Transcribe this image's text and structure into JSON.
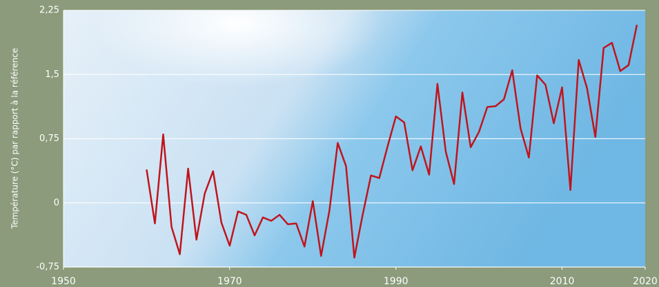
{
  "chart_data": {
    "type": "line",
    "y_label": "Température (°C) par rapport à la référence",
    "x": [
      1960,
      1961,
      1962,
      1963,
      1964,
      1965,
      1966,
      1967,
      1968,
      1969,
      1970,
      1971,
      1972,
      1973,
      1974,
      1975,
      1976,
      1977,
      1978,
      1979,
      1980,
      1981,
      1982,
      1983,
      1984,
      1985,
      1986,
      1987,
      1988,
      1989,
      1990,
      1991,
      1992,
      1993,
      1994,
      1995,
      1996,
      1997,
      1998,
      1999,
      2000,
      2001,
      2002,
      2003,
      2004,
      2005,
      2006,
      2007,
      2008,
      2009,
      2010,
      2011,
      2012,
      2013,
      2014,
      2015,
      2016,
      2017,
      2018,
      2019
    ],
    "series": [
      {
        "color": "#c0141c",
        "values": [
          0.39,
          -0.24,
          0.8,
          -0.28,
          -0.6,
          0.4,
          -0.43,
          0.11,
          0.37,
          -0.23,
          -0.5,
          -0.1,
          -0.14,
          -0.38,
          -0.17,
          -0.21,
          -0.14,
          -0.25,
          -0.24,
          -0.51,
          0.02,
          -0.62,
          -0.09,
          0.7,
          0.43,
          -0.64,
          -0.14,
          0.32,
          0.29,
          0.66,
          1.01,
          0.94,
          0.38,
          0.66,
          0.33,
          1.39,
          0.6,
          0.22,
          1.29,
          0.65,
          0.83,
          1.12,
          1.13,
          1.21,
          1.55,
          0.87,
          0.53,
          1.49,
          1.38,
          0.93,
          1.35,
          0.15,
          1.67,
          1.34,
          0.77,
          1.81,
          1.87,
          1.54,
          1.61,
          2.08
        ]
      }
    ],
    "xlim": [
      1950,
      2020
    ],
    "xticks": [
      1950,
      1970,
      1990,
      2010,
      2020
    ],
    "ylim": [
      -0.75,
      2.25
    ],
    "yticks": [
      {
        "value": -0.75,
        "label": "-0,75"
      },
      0,
      {
        "value": 0.75,
        "label": "0,75"
      },
      {
        "value": 1.5,
        "label": "1,5"
      },
      {
        "value": 2.25,
        "label": "2,25"
      }
    ],
    "grid": true
  }
}
